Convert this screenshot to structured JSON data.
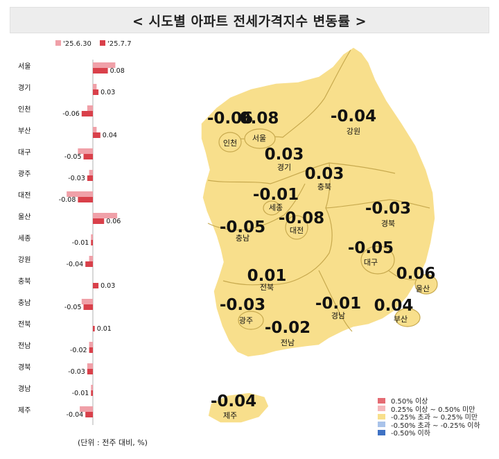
{
  "title": "< 시도별 아파트 전세가격지수 변동률 >",
  "unit_note": "(단위 : 전주 대비, %)",
  "chart_data": {
    "type": "bar",
    "orientation": "horizontal",
    "series": [
      {
        "name": "'25.6.30",
        "color": "#f0a0a8",
        "values": [
          0.12,
          0.02,
          -0.03,
          0.02,
          -0.08,
          -0.02,
          -0.14,
          0.13,
          -0.01,
          -0.02,
          0.0,
          -0.06,
          0.0,
          -0.02,
          -0.03,
          -0.01,
          -0.07
        ]
      },
      {
        "name": "'25.7.7",
        "color": "#d9404a",
        "values": [
          0.08,
          0.03,
          -0.06,
          0.04,
          -0.05,
          -0.03,
          -0.08,
          0.06,
          -0.01,
          -0.04,
          0.03,
          -0.05,
          0.01,
          -0.02,
          -0.03,
          -0.01,
          -0.04
        ]
      }
    ],
    "categories": [
      "서울",
      "경기",
      "인천",
      "부산",
      "대구",
      "광주",
      "대전",
      "울산",
      "세종",
      "강원",
      "충북",
      "충남",
      "전북",
      "전남",
      "경북",
      "경남",
      "제주"
    ],
    "data_labels": [
      "0.08",
      "0.03",
      "-0.06",
      "0.04",
      "-0.05",
      "-0.03",
      "-0.08",
      "0.06",
      "-0.01",
      "-0.04",
      "0.03",
      "-0.05",
      "0.01",
      "-0.02",
      "-0.03",
      "-0.01",
      "-0.04"
    ],
    "legend_position": "top"
  },
  "map": {
    "regions": [
      {
        "name": "인천",
        "value": "-0.06"
      },
      {
        "name": "서울",
        "value": "0.08"
      },
      {
        "name": "강원",
        "value": "-0.04"
      },
      {
        "name": "경기",
        "value": "0.03"
      },
      {
        "name": "충북",
        "value": "0.03"
      },
      {
        "name": "세종",
        "value": "-0.01"
      },
      {
        "name": "경북",
        "value": "-0.03"
      },
      {
        "name": "충남",
        "value": "-0.05"
      },
      {
        "name": "대전",
        "value": "-0.08"
      },
      {
        "name": "대구",
        "value": "-0.05"
      },
      {
        "name": "전북",
        "value": "0.01"
      },
      {
        "name": "울산",
        "value": "0.06"
      },
      {
        "name": "광주",
        "value": "-0.03"
      },
      {
        "name": "경남",
        "value": "-0.01"
      },
      {
        "name": "부산",
        "value": "0.04"
      },
      {
        "name": "전남",
        "value": "-0.02"
      },
      {
        "name": "제주",
        "value": "-0.04"
      }
    ],
    "fill_color": "#f8df8c",
    "legend": [
      {
        "label": "0.50% 이상",
        "color": "#e46b73"
      },
      {
        "label": "0.25% 이상 ~ 0.50% 미만",
        "color": "#f5b8bc"
      },
      {
        "label": "-0.25% 초과 ~ 0.25% 미만",
        "color": "#f8df8c"
      },
      {
        "label": "-0.50% 초과 ~ -0.25% 이하",
        "color": "#a9c3ea"
      },
      {
        "label": "-0.50% 이하",
        "color": "#3f72c4"
      }
    ]
  }
}
